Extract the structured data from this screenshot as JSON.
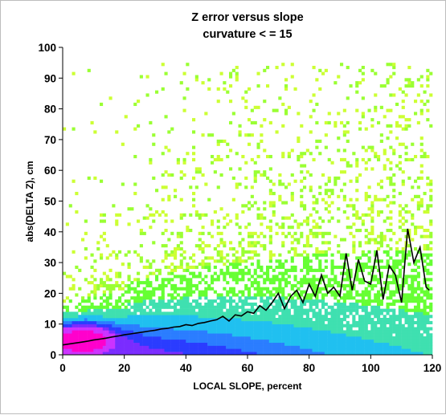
{
  "chart_data": {
    "type": "heatmap",
    "title": "Z error versus slope",
    "subtitle": "curvature < = 15",
    "xlabel": "LOCAL SLOPE, percent",
    "ylabel": "abs(DELTA Z), cm",
    "xlim": [
      0,
      120
    ],
    "ylim": [
      0,
      100
    ],
    "x_ticks": [
      0,
      20,
      40,
      60,
      80,
      100,
      120
    ],
    "y_ticks": [
      0,
      10,
      20,
      30,
      40,
      50,
      60,
      70,
      80,
      90,
      100
    ],
    "grid": false,
    "legend": "none",
    "density_colors": [
      "#ff00cc",
      "#cc33ff",
      "#7a2cff",
      "#2b3cff",
      "#2b7dff",
      "#20c0f0",
      "#3fe0b0",
      "#66ff33",
      "#9aff33",
      "#ccff33"
    ],
    "series": [
      {
        "type": "line",
        "x": [
          0,
          2,
          4,
          6,
          8,
          10,
          12,
          14,
          16,
          18,
          20,
          22,
          24,
          26,
          28,
          30,
          32,
          34,
          36,
          38,
          40,
          42,
          44,
          46,
          48,
          50,
          52,
          54,
          56,
          58,
          60,
          62,
          64,
          66,
          68,
          70,
          72,
          74,
          76,
          78,
          80,
          82,
          84,
          86,
          88,
          90,
          92,
          94,
          96,
          98,
          100,
          102,
          104,
          106,
          108,
          110,
          112,
          114,
          116,
          118,
          119
        ],
        "values": [
          3.2,
          3.5,
          3.8,
          4.1,
          4.4,
          4.8,
          5.1,
          5.4,
          5.8,
          6.1,
          6.5,
          6.8,
          7.1,
          7.4,
          7.7,
          8,
          8.4,
          8.6,
          9,
          9.2,
          9.8,
          9.5,
          10.2,
          10.5,
          11,
          11.4,
          12.5,
          11,
          13,
          12.6,
          14,
          13.5,
          16,
          14.5,
          17,
          20,
          15,
          19,
          21,
          17,
          23,
          19,
          26,
          20,
          22,
          19,
          33,
          21,
          31,
          24,
          23,
          34,
          18,
          29,
          26,
          17,
          41,
          30,
          35,
          22,
          21
        ]
      }
    ]
  }
}
